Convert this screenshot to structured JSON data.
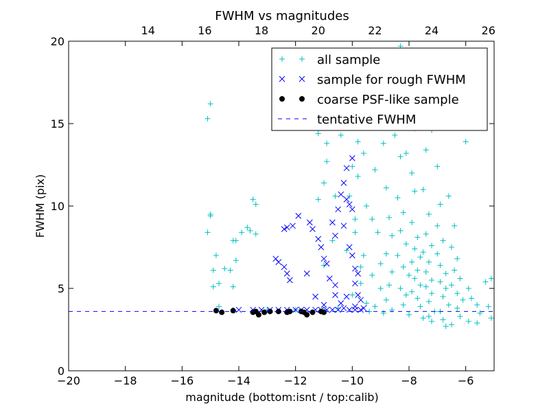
{
  "chart_data": {
    "type": "scatter",
    "title": "FWHM vs magnitudes",
    "xlabel": "magnitude (bottom:isnt / top:calib)",
    "ylabel": "FWHM (pix)",
    "xlim": [
      -20,
      -5
    ],
    "ylim": [
      0,
      20
    ],
    "xticks": [
      -20,
      -18,
      -16,
      -14,
      -12,
      -10,
      -8,
      -6
    ],
    "xtick_labels": [
      "−20",
      "−18",
      "−16",
      "−14",
      "−12",
      "−10",
      "−8",
      "−6"
    ],
    "yticks": [
      0,
      5,
      10,
      15,
      20
    ],
    "ytick_labels": [
      "0",
      "5",
      "10",
      "15",
      "20"
    ],
    "top_axis": {
      "label_offset": 31.2,
      "ticks": [
        14,
        16,
        18,
        20,
        22,
        24,
        26
      ],
      "tick_labels": [
        "14",
        "16",
        "18",
        "20",
        "22",
        "24",
        "26"
      ]
    },
    "grid": false,
    "legend_position": "top-right",
    "colors": {
      "all": "#00bfbf",
      "rough": "#0000ff",
      "coarse": "#000000",
      "tentative": "#0000ff"
    },
    "legend": [
      {
        "label": "all sample",
        "marker": "plus",
        "color": "#00bfbf"
      },
      {
        "label": "sample for rough FWHM",
        "marker": "x",
        "color": "#0000ff"
      },
      {
        "label": "coarse PSF-like sample",
        "marker": "dot",
        "color": "#000000"
      },
      {
        "label": "tentative FWHM",
        "marker": "dashed-line",
        "color": "#0000ff"
      }
    ],
    "tentative_fwhm": 3.6,
    "series": [
      {
        "name": "all sample",
        "marker": "plus",
        "color": "#00bfbf",
        "points": [
          [
            -15.1,
            15.3
          ],
          [
            -15.0,
            16.2
          ],
          [
            -15.0,
            9.5
          ],
          [
            -15.0,
            9.4
          ],
          [
            -15.1,
            8.4
          ],
          [
            -14.8,
            7.0
          ],
          [
            -14.9,
            6.1
          ],
          [
            -14.7,
            5.3
          ],
          [
            -14.9,
            5.1
          ],
          [
            -14.5,
            6.2
          ],
          [
            -14.3,
            6.1
          ],
          [
            -14.2,
            7.9
          ],
          [
            -14.1,
            7.9
          ],
          [
            -14.2,
            5.1
          ],
          [
            -14.1,
            6.7
          ],
          [
            -13.9,
            8.4
          ],
          [
            -13.7,
            8.7
          ],
          [
            -13.5,
            10.4
          ],
          [
            -13.4,
            10.1
          ],
          [
            -13.4,
            8.3
          ],
          [
            -13.6,
            8.5
          ],
          [
            -14.7,
            3.9
          ],
          [
            -14.2,
            3.7
          ],
          [
            -13.0,
            3.7
          ],
          [
            -12.0,
            3.7
          ],
          [
            -11.0,
            3.7
          ],
          [
            -11.2,
            14.4
          ],
          [
            -10.9,
            12.7
          ],
          [
            -10.9,
            13.8
          ],
          [
            -11.2,
            10.4
          ],
          [
            -11.0,
            11.4
          ],
          [
            -10.6,
            10.6
          ],
          [
            -10.7,
            7.9
          ],
          [
            -11.0,
            6.4
          ],
          [
            -10.5,
            3.8
          ],
          [
            -10.4,
            14.3
          ],
          [
            -10.0,
            12.4
          ],
          [
            -9.8,
            11.8
          ],
          [
            -9.6,
            13.2
          ],
          [
            -9.9,
            9.2
          ],
          [
            -10.2,
            7.3
          ],
          [
            -9.6,
            7.0
          ],
          [
            -9.7,
            5.3
          ],
          [
            -9.5,
            4.1
          ],
          [
            -9.5,
            10.0
          ],
          [
            -9.2,
            12.2
          ],
          [
            -9.3,
            9.2
          ],
          [
            -9.1,
            8.4
          ],
          [
            -9.0,
            6.5
          ],
          [
            -9.3,
            5.8
          ],
          [
            -9.0,
            5.0
          ],
          [
            -9.2,
            3.9
          ],
          [
            -8.9,
            13.8
          ],
          [
            -8.8,
            11.1
          ],
          [
            -8.7,
            9.3
          ],
          [
            -8.6,
            8.2
          ],
          [
            -8.8,
            7.1
          ],
          [
            -8.6,
            6.0
          ],
          [
            -8.7,
            5.2
          ],
          [
            -8.8,
            4.3
          ],
          [
            -8.6,
            3.7
          ],
          [
            -8.5,
            14.3
          ],
          [
            -8.3,
            13.0
          ],
          [
            -8.4,
            10.5
          ],
          [
            -8.2,
            9.6
          ],
          [
            -8.3,
            8.5
          ],
          [
            -8.1,
            7.7
          ],
          [
            -8.4,
            7.0
          ],
          [
            -8.2,
            6.3
          ],
          [
            -8.0,
            5.8
          ],
          [
            -8.3,
            5.0
          ],
          [
            -8.1,
            4.6
          ],
          [
            -8.2,
            4.0
          ],
          [
            -8.0,
            3.4
          ],
          [
            -8.3,
            19.7
          ],
          [
            -8.1,
            13.2
          ],
          [
            -7.9,
            12.0
          ],
          [
            -7.8,
            10.9
          ],
          [
            -7.9,
            9.0
          ],
          [
            -7.7,
            8.1
          ],
          [
            -7.8,
            7.4
          ],
          [
            -7.6,
            6.9
          ],
          [
            -7.9,
            6.6
          ],
          [
            -7.7,
            6.1
          ],
          [
            -7.8,
            5.6
          ],
          [
            -7.6,
            5.2
          ],
          [
            -7.9,
            4.8
          ],
          [
            -7.7,
            4.4
          ],
          [
            -7.6,
            3.9
          ],
          [
            -7.5,
            3.2
          ],
          [
            -7.8,
            14.7
          ],
          [
            -7.4,
            13.4
          ],
          [
            -7.5,
            11.0
          ],
          [
            -7.3,
            9.5
          ],
          [
            -7.4,
            8.3
          ],
          [
            -7.2,
            7.6
          ],
          [
            -7.5,
            7.2
          ],
          [
            -7.3,
            6.6
          ],
          [
            -7.4,
            6.0
          ],
          [
            -7.2,
            5.5
          ],
          [
            -7.4,
            5.1
          ],
          [
            -7.2,
            4.7
          ],
          [
            -7.3,
            4.2
          ],
          [
            -7.1,
            3.6
          ],
          [
            -7.2,
            3.0
          ],
          [
            -7.2,
            14.6
          ],
          [
            -7.0,
            12.4
          ],
          [
            -6.9,
            10.1
          ],
          [
            -7.0,
            8.8
          ],
          [
            -6.8,
            7.9
          ],
          [
            -7.0,
            7.1
          ],
          [
            -6.9,
            6.4
          ],
          [
            -6.7,
            5.9
          ],
          [
            -6.9,
            5.4
          ],
          [
            -6.7,
            5.0
          ],
          [
            -6.8,
            4.5
          ],
          [
            -6.6,
            4.0
          ],
          [
            -6.9,
            3.6
          ],
          [
            -6.7,
            2.7
          ],
          [
            -6.6,
            10.6
          ],
          [
            -6.4,
            8.8
          ],
          [
            -6.5,
            7.5
          ],
          [
            -6.3,
            6.8
          ],
          [
            -6.4,
            6.1
          ],
          [
            -6.2,
            5.6
          ],
          [
            -6.5,
            5.2
          ],
          [
            -6.3,
            4.7
          ],
          [
            -6.1,
            4.3
          ],
          [
            -6.3,
            3.8
          ],
          [
            -6.2,
            3.3
          ],
          [
            -6.5,
            2.8
          ],
          [
            -6.0,
            13.9
          ],
          [
            -5.9,
            5.0
          ],
          [
            -5.8,
            4.4
          ],
          [
            -5.6,
            4.0
          ],
          [
            -5.5,
            3.5
          ],
          [
            -5.3,
            5.4
          ],
          [
            -5.1,
            5.6
          ],
          [
            -5.2,
            3.9
          ],
          [
            -5.1,
            3.2
          ],
          [
            -5.9,
            3.0
          ],
          [
            -5.6,
            2.9
          ],
          [
            -8.5,
            16.1
          ],
          [
            -8.0,
            16.6
          ],
          [
            -7.6,
            15.8
          ],
          [
            -8.9,
            15.1
          ],
          [
            -9.4,
            14.9
          ],
          [
            -9.8,
            13.9
          ],
          [
            -10.1,
            10.6
          ],
          [
            -9.9,
            8.4
          ],
          [
            -9.7,
            6.3
          ],
          [
            -10.0,
            4.6
          ],
          [
            -9.4,
            3.6
          ],
          [
            -8.9,
            3.5
          ],
          [
            -7.3,
            3.3
          ],
          [
            -6.8,
            3.1
          ]
        ]
      },
      {
        "name": "sample for rough FWHM",
        "marker": "x",
        "color": "#0000ff",
        "points": [
          [
            -12.7,
            6.8
          ],
          [
            -12.6,
            6.6
          ],
          [
            -12.4,
            6.3
          ],
          [
            -12.3,
            5.9
          ],
          [
            -12.2,
            5.5
          ],
          [
            -12.4,
            8.6
          ],
          [
            -12.3,
            8.7
          ],
          [
            -12.1,
            8.8
          ],
          [
            -11.9,
            9.4
          ],
          [
            -11.5,
            9.0
          ],
          [
            -11.4,
            8.6
          ],
          [
            -11.6,
            5.9
          ],
          [
            -11.2,
            8.0
          ],
          [
            -11.1,
            7.5
          ],
          [
            -11.0,
            6.8
          ],
          [
            -10.9,
            6.5
          ],
          [
            -10.8,
            5.6
          ],
          [
            -10.6,
            5.2
          ],
          [
            -11.3,
            4.5
          ],
          [
            -11.0,
            4.0
          ],
          [
            -10.6,
            4.6
          ],
          [
            -10.4,
            4.1
          ],
          [
            -10.7,
            9.0
          ],
          [
            -10.6,
            8.2
          ],
          [
            -10.5,
            9.8
          ],
          [
            -10.4,
            10.7
          ],
          [
            -10.3,
            11.4
          ],
          [
            -10.2,
            10.4
          ],
          [
            -10.1,
            10.1
          ],
          [
            -10.0,
            9.8
          ],
          [
            -10.2,
            12.3
          ],
          [
            -10.0,
            12.9
          ],
          [
            -10.3,
            8.8
          ],
          [
            -10.1,
            7.5
          ],
          [
            -10.0,
            7.0
          ],
          [
            -9.9,
            6.2
          ],
          [
            -9.8,
            5.9
          ],
          [
            -9.9,
            5.3
          ],
          [
            -10.2,
            4.5
          ],
          [
            -9.8,
            4.6
          ],
          [
            -9.7,
            4.3
          ],
          [
            -9.9,
            3.9
          ],
          [
            -10.3,
            3.8
          ],
          [
            -10.1,
            3.7
          ],
          [
            -9.9,
            3.7
          ],
          [
            -9.7,
            3.7
          ],
          [
            -9.6,
            3.8
          ],
          [
            -10.5,
            3.7
          ],
          [
            -10.7,
            3.7
          ],
          [
            -10.9,
            3.7
          ],
          [
            -11.1,
            3.7
          ],
          [
            -11.3,
            3.7
          ],
          [
            -11.6,
            3.7
          ],
          [
            -11.8,
            3.7
          ],
          [
            -12.0,
            3.7
          ],
          [
            -12.3,
            3.7
          ],
          [
            -12.6,
            3.7
          ],
          [
            -12.9,
            3.7
          ],
          [
            -13.2,
            3.7
          ],
          [
            -13.5,
            3.7
          ],
          [
            -14.0,
            3.7
          ]
        ]
      },
      {
        "name": "coarse PSF-like sample",
        "marker": "dot",
        "color": "#000000",
        "points": [
          [
            -14.8,
            3.65
          ],
          [
            -14.6,
            3.55
          ],
          [
            -14.2,
            3.65
          ],
          [
            -13.5,
            3.55
          ],
          [
            -13.4,
            3.6
          ],
          [
            -13.3,
            3.4
          ],
          [
            -13.1,
            3.55
          ],
          [
            -12.9,
            3.6
          ],
          [
            -12.6,
            3.6
          ],
          [
            -12.3,
            3.55
          ],
          [
            -12.2,
            3.6
          ],
          [
            -11.8,
            3.6
          ],
          [
            -11.7,
            3.55
          ],
          [
            -11.6,
            3.4
          ],
          [
            -11.4,
            3.55
          ],
          [
            -11.1,
            3.6
          ],
          [
            -11.0,
            3.55
          ]
        ]
      }
    ]
  }
}
